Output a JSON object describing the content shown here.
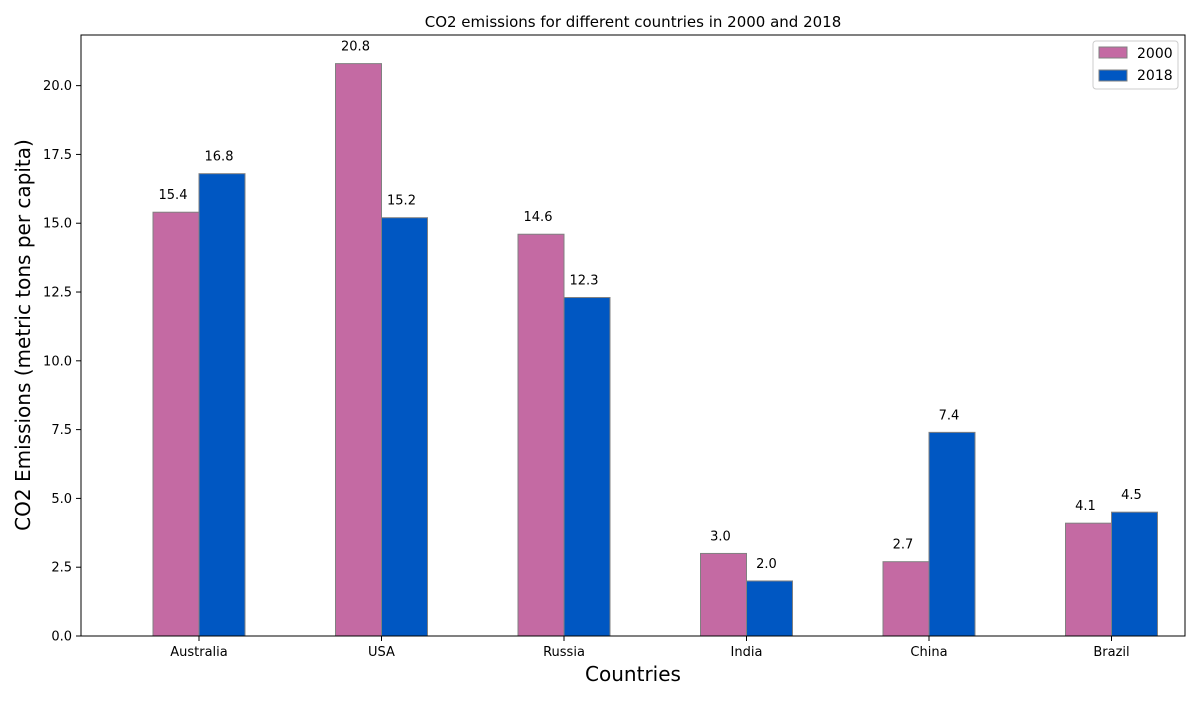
{
  "chart_data": {
    "type": "bar",
    "title": "CO2 emissions for different countries in 2000 and 2018",
    "xlabel": "Countries",
    "ylabel": "CO2 Emissions (metric tons per capita)",
    "categories": [
      "Australia",
      "USA",
      "Russia",
      "India",
      "China",
      "Brazil"
    ],
    "series": [
      {
        "name": "2000",
        "values": [
          15.4,
          20.8,
          14.6,
          3.0,
          2.7,
          4.1
        ],
        "color": "#c46aa3",
        "labels": [
          "15.4",
          "20.8",
          "14.6",
          "3.0",
          "2.7",
          "4.1"
        ]
      },
      {
        "name": "2018",
        "values": [
          16.8,
          15.2,
          12.3,
          2.0,
          7.4,
          4.5
        ],
        "color": "#0057c2",
        "labels": [
          "16.8",
          "15.2",
          "12.3",
          "2.0",
          "7.4",
          "4.5"
        ]
      }
    ],
    "ylim": [
      0,
      21.84
    ],
    "yticks": [
      0,
      2.5,
      5,
      7.5,
      10,
      12.5,
      15,
      17.5,
      20
    ],
    "ytick_labels": [
      "0.0",
      "2.5",
      "5.0",
      "7.5",
      "10.0",
      "12.5",
      "15.0",
      "17.5",
      "20.0"
    ],
    "grid": false,
    "legend_position": "top-right",
    "bar_edge_color": "#808080"
  }
}
